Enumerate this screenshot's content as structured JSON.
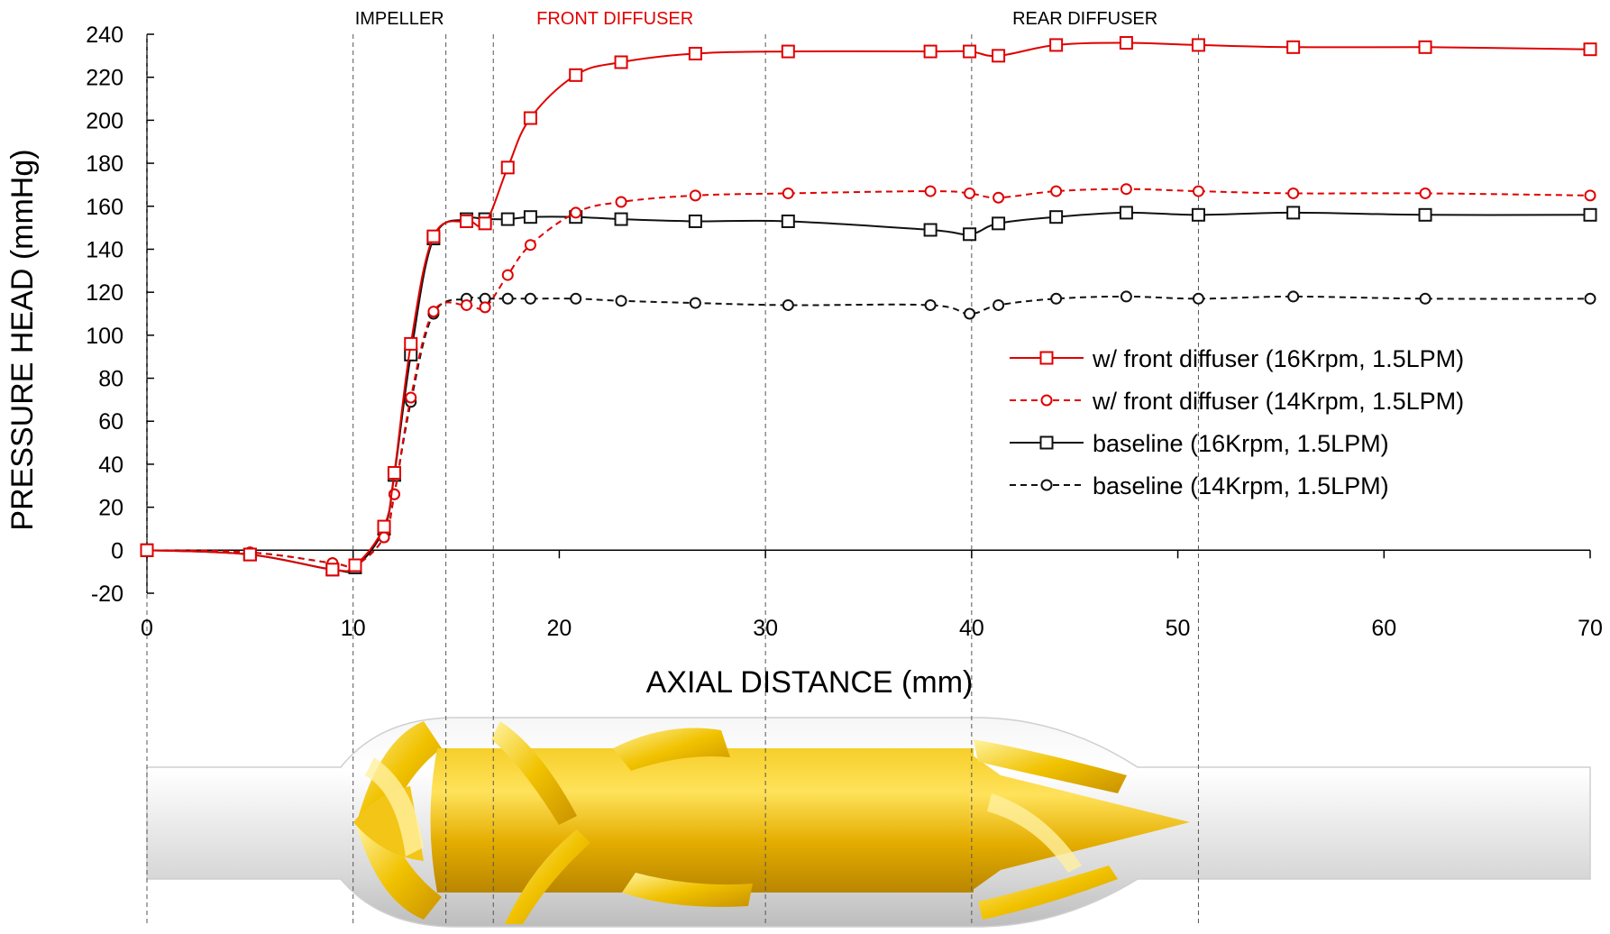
{
  "chart_data": {
    "type": "line",
    "xlabel": "AXIAL DISTANCE (mm)",
    "ylabel": "PRESSURE HEAD (mmHg)",
    "xlim": [
      0,
      70
    ],
    "ylim": [
      -20,
      240
    ],
    "xticks": [
      0,
      10,
      20,
      30,
      40,
      50,
      60,
      70
    ],
    "yticks": [
      -20,
      0,
      20,
      40,
      60,
      80,
      100,
      120,
      140,
      160,
      180,
      200,
      220,
      240
    ],
    "grid": false,
    "legend_position": "right-center",
    "region_boundaries": [
      0,
      10,
      14.5,
      16.8,
      30,
      40,
      51
    ],
    "region_labels": [
      {
        "text": "IMPELLER",
        "x": 12.25,
        "color": "#000000"
      },
      {
        "text": "FRONT DIFFUSER",
        "x": 22.7,
        "color": "#e00000"
      },
      {
        "text": "REAR DIFFUSER",
        "x": 45.5,
        "color": "#000000"
      }
    ],
    "series": [
      {
        "name": "w/ front diffuser (16Krpm, 1.5LPM)",
        "color": "#e00000",
        "dash": "solid",
        "marker": "square",
        "x": [
          0,
          5,
          9,
          10.1,
          11.5,
          12,
          12.8,
          13.9,
          15.5,
          16.4,
          17.5,
          18.6,
          20.8,
          23,
          26.6,
          31.1,
          38,
          39.9,
          41.3,
          44.1,
          47.5,
          51,
          55.6,
          62,
          70
        ],
        "y": [
          0,
          -2,
          -9,
          -7,
          11,
          36,
          96,
          146,
          153,
          152,
          178,
          201,
          221,
          227,
          231,
          232,
          232,
          232,
          230,
          235,
          236,
          235,
          234,
          234,
          233
        ]
      },
      {
        "name": "w/ front diffuser (14Krpm, 1.5LPM)",
        "color": "#e00000",
        "dash": "dashed",
        "marker": "circle",
        "x": [
          0,
          5,
          9,
          10.1,
          11.5,
          12,
          12.8,
          13.9,
          15.5,
          16.4,
          17.5,
          18.6,
          20.8,
          23,
          26.6,
          31.1,
          38,
          39.9,
          41.3,
          44.1,
          47.5,
          51,
          55.6,
          62,
          70
        ],
        "y": [
          0,
          -1,
          -6,
          -7,
          6,
          26,
          71,
          111,
          114,
          113,
          128,
          142,
          157,
          162,
          165,
          166,
          167,
          166,
          164,
          167,
          168,
          167,
          166,
          166,
          165
        ]
      },
      {
        "name": "baseline (16Krpm, 1.5LPM)",
        "color": "#111111",
        "dash": "solid",
        "marker": "square",
        "x": [
          0,
          5,
          9,
          10.1,
          11.5,
          12,
          12.8,
          13.9,
          15.5,
          16.4,
          17.5,
          18.6,
          20.8,
          23,
          26.6,
          31.1,
          38,
          39.9,
          41.3,
          44.1,
          47.5,
          51,
          55.6,
          62,
          70
        ],
        "y": [
          0,
          -2,
          -9,
          -8,
          10,
          35,
          91,
          145,
          154,
          154,
          154,
          155,
          155,
          154,
          153,
          153,
          149,
          147,
          152,
          155,
          157,
          156,
          157,
          156,
          156
        ]
      },
      {
        "name": "baseline (14Krpm, 1.5LPM)",
        "color": "#111111",
        "dash": "dashed",
        "marker": "circle",
        "x": [
          0,
          5,
          9,
          10.1,
          11.5,
          12,
          12.8,
          13.9,
          15.5,
          16.4,
          17.5,
          18.6,
          20.8,
          23,
          26.6,
          31.1,
          38,
          39.9,
          41.3,
          44.1,
          47.5,
          51,
          55.6,
          62,
          70
        ],
        "y": [
          0,
          -1,
          -6,
          -7,
          6,
          26,
          69,
          110,
          117,
          117,
          117,
          117,
          117,
          116,
          115,
          114,
          114,
          110,
          114,
          117,
          118,
          117,
          118,
          117,
          117
        ]
      }
    ]
  },
  "illustration": {
    "description_icon": "blood-pump-impeller-diffuser-rendering",
    "housing_color": "#e4e4e4",
    "part_color": "#e8b400"
  }
}
